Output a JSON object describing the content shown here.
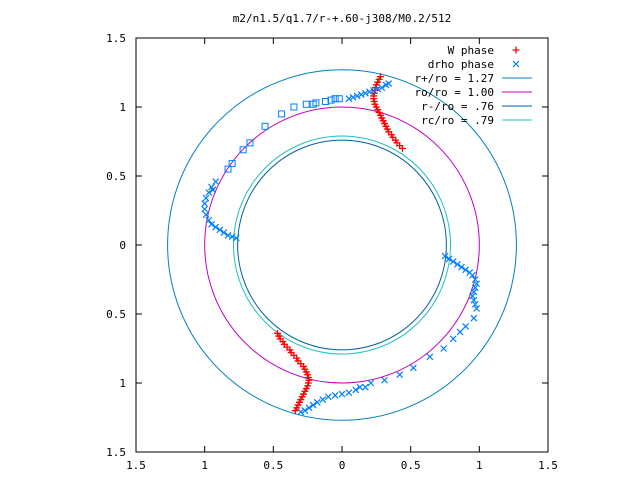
{
  "chart_data": {
    "type": "scatter",
    "title": "m2/n1.5/q1.7/r-+.60-j308/M0.2/512",
    "xlabel": "",
    "ylabel": "",
    "xlim": [
      -1.5,
      1.5
    ],
    "ylim": [
      -1.5,
      1.5
    ],
    "x_tick_labels": [
      "1.5",
      "1",
      "0.5",
      "0",
      "0.5",
      "1",
      "1.5"
    ],
    "x_tick_values": [
      -1.5,
      -1,
      -0.5,
      0,
      0.5,
      1,
      1.5
    ],
    "y_tick_labels": [
      "1.5",
      "1",
      "0.5",
      "0",
      "0.5",
      "1",
      "1.5"
    ],
    "y_tick_values": [
      1.5,
      1,
      0.5,
      0,
      -0.5,
      -1,
      -1.5
    ],
    "grid": false,
    "legend_position": "top-right",
    "circles": [
      {
        "name": "r+/ro = 1.27",
        "radius": 1.27,
        "color": "#0080c0"
      },
      {
        "name": "ro/ro = 1.00",
        "radius": 1.0,
        "color": "#c000c0"
      },
      {
        "name": "r-/ro = .76",
        "radius": 0.76,
        "color": "#0060a0"
      },
      {
        "name": "rc/ro = .79",
        "radius": 0.79,
        "color": "#20c0c0"
      }
    ],
    "series": [
      {
        "name": "W phase",
        "marker": "plus",
        "color": "#ff0000",
        "points": [
          [
            0.28,
            1.22
          ],
          [
            0.27,
            1.2
          ],
          [
            0.26,
            1.18
          ],
          [
            0.25,
            1.16
          ],
          [
            0.245,
            1.14
          ],
          [
            0.24,
            1.12
          ],
          [
            0.235,
            1.1
          ],
          [
            0.23,
            1.08
          ],
          [
            0.23,
            1.06
          ],
          [
            0.235,
            1.04
          ],
          [
            0.24,
            1.02
          ],
          [
            0.25,
            1.0
          ],
          [
            0.26,
            0.98
          ],
          [
            0.27,
            0.96
          ],
          [
            0.28,
            0.94
          ],
          [
            0.29,
            0.92
          ],
          [
            0.3,
            0.9
          ],
          [
            0.31,
            0.88
          ],
          [
            0.32,
            0.86
          ],
          [
            0.33,
            0.84
          ],
          [
            0.34,
            0.82
          ],
          [
            0.36,
            0.8
          ],
          [
            0.37,
            0.78
          ],
          [
            0.39,
            0.76
          ],
          [
            0.4,
            0.74
          ],
          [
            0.42,
            0.72
          ],
          [
            0.44,
            0.7
          ],
          [
            -0.47,
            -0.64
          ],
          [
            -0.46,
            -0.66
          ],
          [
            -0.45,
            -0.68
          ],
          [
            -0.43,
            -0.7
          ],
          [
            -0.42,
            -0.72
          ],
          [
            -0.4,
            -0.74
          ],
          [
            -0.38,
            -0.76
          ],
          [
            -0.37,
            -0.78
          ],
          [
            -0.35,
            -0.8
          ],
          [
            -0.33,
            -0.82
          ],
          [
            -0.32,
            -0.84
          ],
          [
            -0.3,
            -0.86
          ],
          [
            -0.28,
            -0.88
          ],
          [
            -0.27,
            -0.9
          ],
          [
            -0.26,
            -0.92
          ],
          [
            -0.25,
            -0.94
          ],
          [
            -0.245,
            -0.96
          ],
          [
            -0.24,
            -0.98
          ],
          [
            -0.245,
            -1.0
          ],
          [
            -0.25,
            -1.02
          ],
          [
            -0.26,
            -1.04
          ],
          [
            -0.27,
            -1.06
          ],
          [
            -0.28,
            -1.08
          ],
          [
            -0.29,
            -1.1
          ],
          [
            -0.3,
            -1.12
          ],
          [
            -0.31,
            -1.14
          ],
          [
            -0.32,
            -1.16
          ],
          [
            -0.33,
            -1.18
          ],
          [
            -0.34,
            -1.2
          ]
        ]
      },
      {
        "name": "drho phase",
        "marker": "x-and-square",
        "color": "#0080ff",
        "points": [
          [
            0.05,
            1.06
          ],
          [
            0.08,
            1.07
          ],
          [
            0.11,
            1.08
          ],
          [
            0.14,
            1.09
          ],
          [
            0.17,
            1.1
          ],
          [
            0.2,
            1.11
          ],
          [
            0.23,
            1.12
          ],
          [
            0.26,
            1.13
          ],
          [
            0.29,
            1.14
          ],
          [
            0.32,
            1.16
          ],
          [
            0.34,
            1.17
          ],
          [
            -0.02,
            1.06
          ],
          [
            -0.05,
            1.06
          ],
          [
            -0.08,
            1.05
          ],
          [
            -0.12,
            1.04
          ],
          [
            -0.19,
            1.03
          ],
          [
            -0.21,
            1.02
          ],
          [
            -0.26,
            1.02
          ],
          [
            -0.35,
            1.0
          ],
          [
            -0.44,
            0.95
          ],
          [
            -0.56,
            0.86
          ],
          [
            -0.67,
            0.74
          ],
          [
            -0.72,
            0.69
          ],
          [
            -0.8,
            0.59
          ],
          [
            -0.83,
            0.55
          ],
          [
            -0.94,
            0.4
          ],
          [
            -0.92,
            0.46
          ],
          [
            -0.95,
            0.42
          ],
          [
            -0.97,
            0.38
          ],
          [
            -0.99,
            0.34
          ],
          [
            -1.0,
            0.3
          ],
          [
            -1.0,
            0.26
          ],
          [
            -0.99,
            0.22
          ],
          [
            -0.97,
            0.18
          ],
          [
            -0.95,
            0.15
          ],
          [
            -0.92,
            0.13
          ],
          [
            -0.89,
            0.11
          ],
          [
            -0.86,
            0.09
          ],
          [
            -0.83,
            0.07
          ],
          [
            -0.8,
            0.06
          ],
          [
            -0.77,
            0.05
          ],
          [
            0.75,
            -0.08
          ],
          [
            0.78,
            -0.1
          ],
          [
            0.81,
            -0.12
          ],
          [
            0.84,
            -0.14
          ],
          [
            0.87,
            -0.16
          ],
          [
            0.9,
            -0.18
          ],
          [
            0.93,
            -0.2
          ],
          [
            0.95,
            -0.22
          ],
          [
            0.97,
            -0.25
          ],
          [
            0.98,
            -0.28
          ],
          [
            0.97,
            -0.31
          ],
          [
            0.96,
            -0.34
          ],
          [
            0.95,
            -0.37
          ],
          [
            0.96,
            -0.4
          ],
          [
            0.97,
            -0.43
          ],
          [
            0.98,
            -0.46
          ],
          [
            0.96,
            -0.53
          ],
          [
            0.9,
            -0.59
          ],
          [
            0.86,
            -0.63
          ],
          [
            0.81,
            -0.68
          ],
          [
            0.74,
            -0.75
          ],
          [
            0.64,
            -0.81
          ],
          [
            0.52,
            -0.89
          ],
          [
            0.42,
            -0.94
          ],
          [
            0.31,
            -0.98
          ],
          [
            0.21,
            -1.0
          ],
          [
            0.17,
            -1.03
          ],
          [
            0.13,
            -1.03
          ],
          [
            0.1,
            -1.05
          ],
          [
            0.05,
            -1.07
          ],
          [
            0.0,
            -1.08
          ],
          [
            -0.05,
            -1.09
          ],
          [
            -0.1,
            -1.1
          ],
          [
            -0.14,
            -1.12
          ],
          [
            -0.18,
            -1.14
          ],
          [
            -0.21,
            -1.16
          ],
          [
            -0.24,
            -1.18
          ],
          [
            -0.27,
            -1.2
          ],
          [
            -0.3,
            -1.21
          ]
        ]
      }
    ]
  }
}
